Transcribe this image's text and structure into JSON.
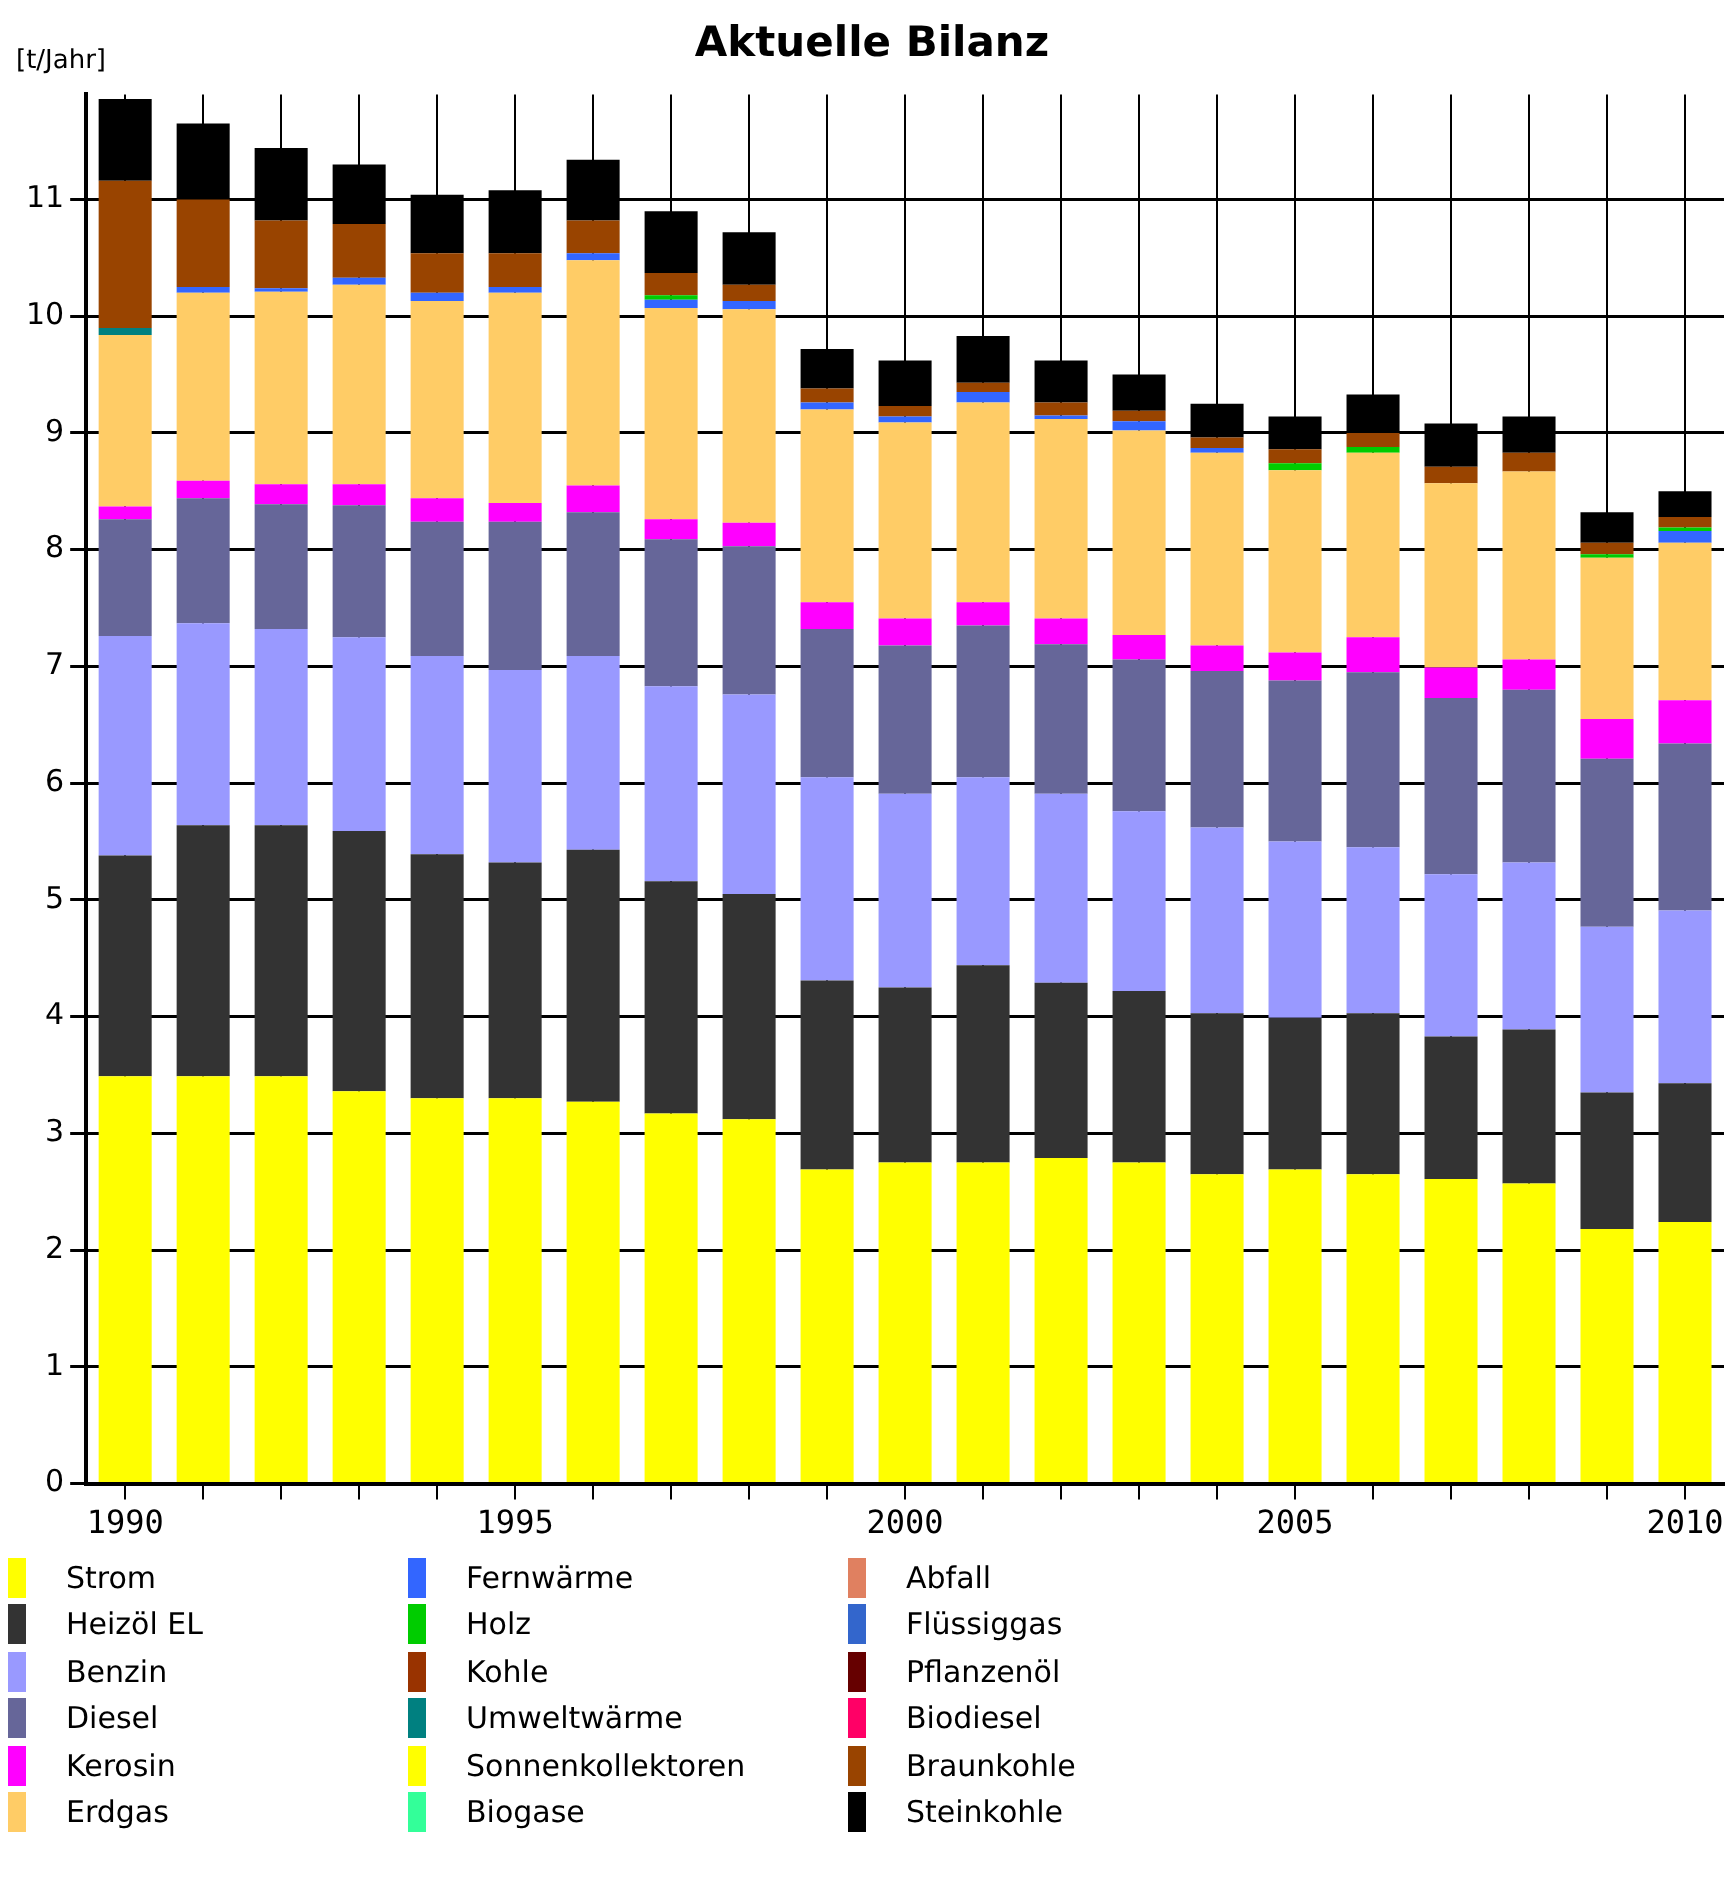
{
  "chart_data": {
    "type": "bar",
    "title": "Aktuelle Bilanz",
    "ylabel": "[t/Jahr]",
    "stacked": true,
    "grid": true,
    "legend": "bottom",
    "categories": [
      "1990",
      null,
      null,
      null,
      null,
      "1995",
      null,
      null,
      null,
      null,
      "2000",
      null,
      null,
      null,
      null,
      "2005",
      null,
      null,
      null,
      null,
      "2010"
    ],
    "ylim": [
      0,
      11.9
    ],
    "yticks": [
      0,
      1,
      2,
      3,
      4,
      5,
      6,
      7,
      8,
      9,
      10,
      11
    ],
    "series": [
      {
        "name": "Strom",
        "color": "#ffff00",
        "values": [
          3.49,
          3.49,
          3.49,
          3.36,
          3.3,
          3.3,
          3.27,
          3.17,
          3.12,
          2.69,
          2.75,
          2.75,
          2.79,
          2.75,
          2.65,
          2.69,
          2.65,
          2.61,
          2.57,
          2.18,
          2.24
        ]
      },
      {
        "name": "Heizöl EL",
        "color": "#333333",
        "values": [
          1.89,
          2.15,
          2.15,
          2.23,
          2.09,
          2.02,
          2.16,
          1.99,
          1.93,
          1.62,
          1.5,
          1.69,
          1.5,
          1.47,
          1.38,
          1.3,
          1.38,
          1.22,
          1.32,
          1.17,
          1.19
        ]
      },
      {
        "name": "Benzin",
        "color": "#9999ff",
        "values": [
          1.88,
          1.73,
          1.68,
          1.66,
          1.7,
          1.65,
          1.66,
          1.67,
          1.71,
          1.74,
          1.66,
          1.61,
          1.62,
          1.54,
          1.59,
          1.51,
          1.42,
          1.39,
          1.43,
          1.42,
          1.48
        ]
      },
      {
        "name": "Diesel",
        "color": "#666699",
        "values": [
          1.0,
          1.07,
          1.07,
          1.13,
          1.15,
          1.27,
          1.23,
          1.26,
          1.27,
          1.27,
          1.27,
          1.3,
          1.28,
          1.3,
          1.34,
          1.38,
          1.5,
          1.51,
          1.48,
          1.44,
          1.43
        ]
      },
      {
        "name": "Kerosin",
        "color": "#ff00ff",
        "values": [
          0.11,
          0.15,
          0.17,
          0.18,
          0.2,
          0.16,
          0.23,
          0.17,
          0.2,
          0.23,
          0.23,
          0.2,
          0.22,
          0.21,
          0.22,
          0.24,
          0.3,
          0.26,
          0.26,
          0.34,
          0.37
        ]
      },
      {
        "name": "Erdgas",
        "color": "#ffcc66",
        "values": [
          1.47,
          1.61,
          1.65,
          1.71,
          1.69,
          1.8,
          1.93,
          1.81,
          1.83,
          1.65,
          1.68,
          1.71,
          1.71,
          1.75,
          1.65,
          1.56,
          1.58,
          1.58,
          1.61,
          1.38,
          1.35
        ]
      },
      {
        "name": "Fernwärme",
        "color": "#3366ff",
        "values": [
          0,
          0.05,
          0.03,
          0.06,
          0.07,
          0.05,
          0.06,
          0.07,
          0.07,
          0.06,
          0.05,
          0.09,
          0.03,
          0.08,
          0.04,
          0,
          0,
          0,
          0,
          0,
          0.1
        ]
      },
      {
        "name": "Holz",
        "color": "#00cc00",
        "values": [
          0,
          0,
          0,
          0,
          0,
          0,
          0,
          0.04,
          0,
          0,
          0,
          0,
          0,
          0,
          0,
          0.06,
          0.05,
          0,
          0,
          0.03,
          0.03
        ]
      },
      {
        "name": "Kohle",
        "color": "#993300",
        "values": [
          0,
          0,
          0,
          0,
          0,
          0,
          0,
          0,
          0,
          0,
          0,
          0,
          0,
          0,
          0,
          0,
          0,
          0,
          0,
          0,
          0
        ]
      },
      {
        "name": "Umweltwärme",
        "color": "#008080",
        "values": [
          0.06,
          0,
          0,
          0,
          0,
          0,
          0,
          0,
          0,
          0,
          0,
          0,
          0,
          0,
          0,
          0,
          0,
          0,
          0,
          0,
          0
        ]
      },
      {
        "name": "Sonnenkollektoren",
        "color": "#ffff00",
        "values": [
          0,
          0,
          0,
          0,
          0,
          0,
          0,
          0,
          0,
          0,
          0,
          0,
          0,
          0,
          0,
          0,
          0,
          0,
          0,
          0,
          0
        ]
      },
      {
        "name": "Biogase",
        "color": "#33ff99",
        "values": [
          0,
          0,
          0,
          0,
          0,
          0,
          0,
          0,
          0,
          0,
          0,
          0,
          0,
          0,
          0,
          0,
          0,
          0,
          0,
          0,
          0
        ]
      },
      {
        "name": "Abfall",
        "color": "#e08060",
        "values": [
          0,
          0,
          0,
          0,
          0,
          0,
          0,
          0,
          0,
          0,
          0,
          0,
          0,
          0,
          0,
          0,
          0,
          0,
          0,
          0,
          0
        ]
      },
      {
        "name": "Flüssiggas",
        "color": "#3366cc",
        "values": [
          0,
          0,
          0,
          0,
          0,
          0,
          0,
          0,
          0,
          0,
          0,
          0,
          0,
          0,
          0,
          0,
          0,
          0,
          0,
          0,
          0
        ]
      },
      {
        "name": "Pflanzenöl",
        "color": "#660000",
        "values": [
          0,
          0,
          0,
          0,
          0,
          0,
          0,
          0,
          0,
          0,
          0,
          0,
          0,
          0,
          0,
          0,
          0,
          0,
          0,
          0,
          0
        ]
      },
      {
        "name": "Biodiesel",
        "color": "#ff0066",
        "values": [
          0,
          0,
          0,
          0,
          0,
          0,
          0,
          0,
          0,
          0,
          0,
          0,
          0,
          0,
          0,
          0,
          0,
          0,
          0,
          0,
          0
        ]
      },
      {
        "name": "Braunkohle",
        "color": "#994400",
        "values": [
          1.26,
          0.75,
          0.58,
          0.46,
          0.34,
          0.29,
          0.28,
          0.19,
          0.14,
          0.12,
          0.09,
          0.08,
          0.11,
          0.09,
          0.09,
          0.12,
          0.12,
          0.14,
          0.16,
          0.1,
          0.09
        ]
      },
      {
        "name": "Steinkohle",
        "color": "#000000",
        "values": [
          0.7,
          0.65,
          0.62,
          0.51,
          0.5,
          0.54,
          0.52,
          0.53,
          0.45,
          0.34,
          0.39,
          0.4,
          0.36,
          0.31,
          0.29,
          0.28,
          0.33,
          0.37,
          0.31,
          0.26,
          0.22
        ]
      }
    ]
  }
}
